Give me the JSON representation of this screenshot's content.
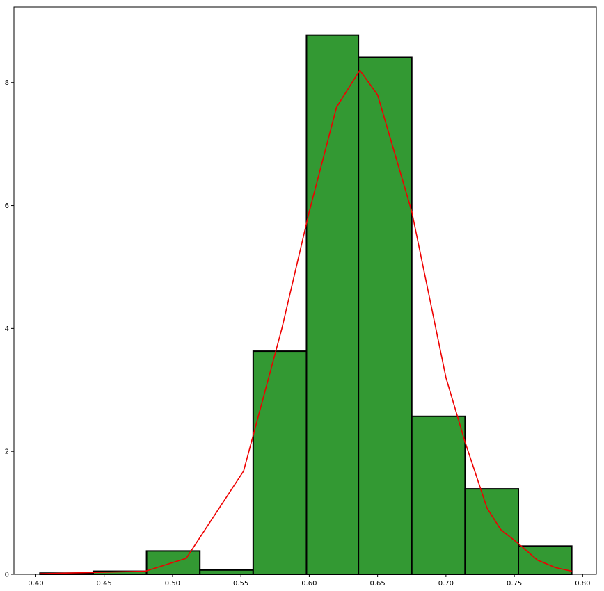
{
  "chart_data": {
    "type": "bar",
    "title": "",
    "xlabel": "",
    "ylabel": "",
    "xlim": [
      0.384,
      0.81
    ],
    "ylim": [
      0,
      9.23
    ],
    "x_ticks": [
      0.4,
      0.45,
      0.5,
      0.55,
      0.6,
      0.65,
      0.7,
      0.75,
      0.8
    ],
    "x_tick_labels": [
      "0.40",
      "0.45",
      "0.50",
      "0.55",
      "0.60",
      "0.65",
      "0.70",
      "0.75",
      "0.80"
    ],
    "y_ticks": [
      0,
      2,
      4,
      6,
      8
    ],
    "y_tick_labels": [
      "0",
      "2",
      "4",
      "6",
      "8"
    ],
    "bins": [
      {
        "x0": 0.403,
        "x1": 0.442,
        "value": 0.02
      },
      {
        "x0": 0.442,
        "x1": 0.481,
        "value": 0.05
      },
      {
        "x0": 0.481,
        "x1": 0.52,
        "value": 0.38
      },
      {
        "x0": 0.52,
        "x1": 0.559,
        "value": 0.07
      },
      {
        "x0": 0.559,
        "x1": 0.598,
        "value": 3.63
      },
      {
        "x0": 0.598,
        "x1": 0.636,
        "value": 8.77
      },
      {
        "x0": 0.636,
        "x1": 0.675,
        "value": 8.41
      },
      {
        "x0": 0.675,
        "x1": 0.714,
        "value": 2.57
      },
      {
        "x0": 0.714,
        "x1": 0.753,
        "value": 1.39
      },
      {
        "x0": 0.753,
        "x1": 0.792,
        "value": 0.46
      }
    ],
    "density_curve": {
      "x": [
        0.403,
        0.48,
        0.51,
        0.552,
        0.58,
        0.6,
        0.62,
        0.637,
        0.65,
        0.675,
        0.7,
        0.714,
        0.73,
        0.74,
        0.753,
        0.767,
        0.78,
        0.792
      ],
      "y": [
        0.01,
        0.05,
        0.26,
        1.68,
        4.0,
        5.9,
        7.6,
        8.2,
        7.8,
        5.9,
        3.2,
        2.15,
        1.08,
        0.73,
        0.5,
        0.23,
        0.11,
        0.05
      ]
    },
    "colors": {
      "bar_fill": "#339933",
      "bar_edge": "#000000",
      "curve": "#ee0000",
      "axes": "#000000",
      "background": "#ffffff"
    },
    "grid": false,
    "legend": "none"
  }
}
